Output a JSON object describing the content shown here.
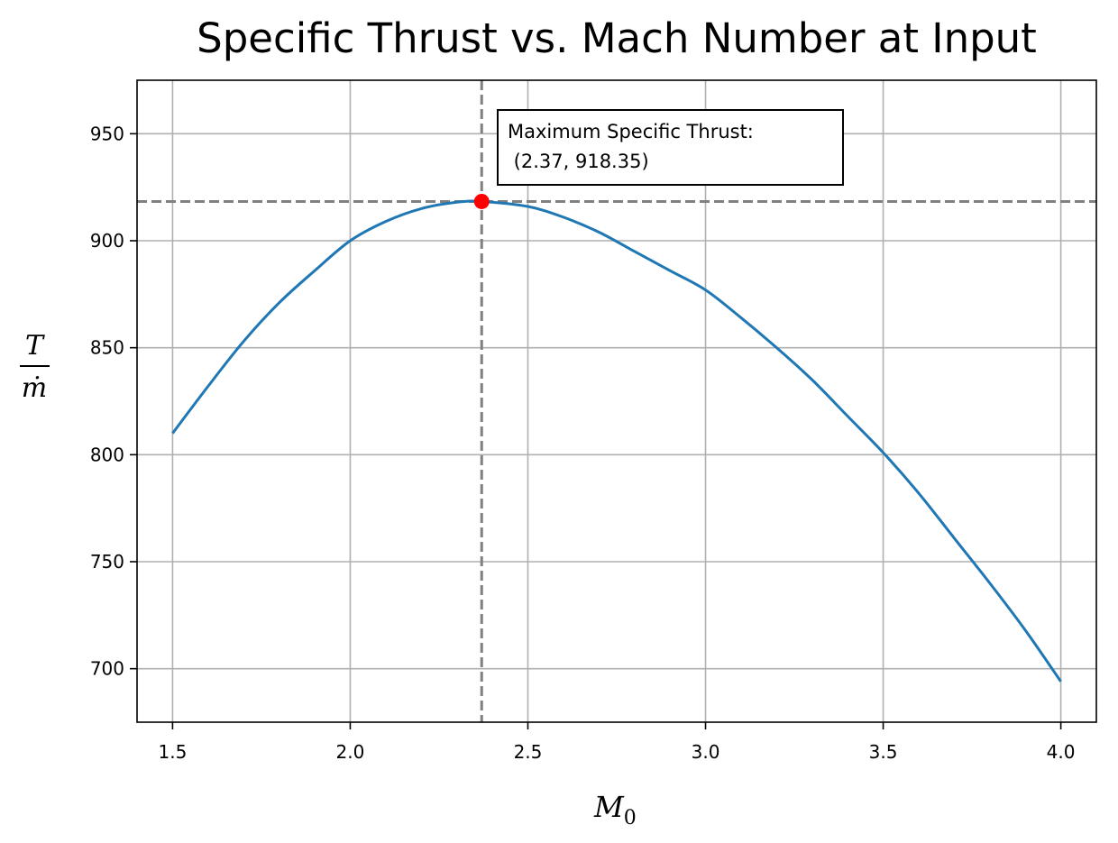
{
  "chart_data": {
    "type": "line",
    "title": "Specific Thrust vs. Mach Number at Input",
    "xlabel": "M",
    "xlabel_subscript": "0",
    "ylabel_numerator": "T",
    "ylabel_denominator": "ṁ",
    "xlim": [
      1.4,
      4.1
    ],
    "ylim": [
      675,
      975
    ],
    "xticks": [
      1.5,
      2.0,
      2.5,
      3.0,
      3.5,
      4.0
    ],
    "xtick_labels": [
      "1.5",
      "2.0",
      "2.5",
      "3.0",
      "3.5",
      "4.0"
    ],
    "yticks": [
      700,
      750,
      800,
      850,
      900,
      950
    ],
    "ytick_labels": [
      "700",
      "750",
      "800",
      "850",
      "900",
      "950"
    ],
    "grid": true,
    "series": [
      {
        "color": "#1f77b4",
        "x": [
          1.5,
          1.6,
          1.7,
          1.8,
          1.9,
          2.0,
          2.1,
          2.2,
          2.3,
          2.37,
          2.5,
          2.6,
          2.7,
          2.8,
          2.9,
          3.0,
          3.1,
          3.2,
          3.3,
          3.4,
          3.5,
          3.6,
          3.7,
          3.8,
          3.9,
          4.0
        ],
        "y": [
          810,
          832,
          853,
          871,
          886,
          900,
          909,
          915,
          918,
          918.35,
          916,
          911,
          904,
          895,
          886,
          877,
          864,
          850,
          835,
          818,
          801,
          782,
          761,
          740,
          718,
          694
        ]
      }
    ],
    "max_point": {
      "x": 2.37,
      "y": 918.35,
      "color": "#ff0000"
    },
    "reference_lines": {
      "vertical_x": 2.37,
      "horizontal_y": 918.35,
      "color": "#808080",
      "style": "dashed"
    },
    "annotation": {
      "line1": "Maximum Specific Thrust:",
      "line2": " (2.37, 918.35)"
    }
  }
}
